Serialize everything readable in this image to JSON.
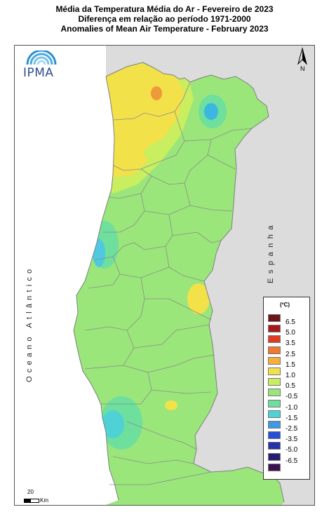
{
  "title": {
    "line1": "Média da Temperatura Média do Ar - Fevereiro de 2023",
    "line2": "Diferença em relação ao período 1971-2000",
    "line3": "Anomalies of Mean Air Temperature - February 2023"
  },
  "logo": {
    "text": "IPMA"
  },
  "north_arrow": {
    "letter": "N"
  },
  "labels": {
    "ocean": "Oceano Atlântico",
    "spain": "Espanha"
  },
  "legend": {
    "unit": "(ºC)",
    "entries": [
      {
        "label": "6.5",
        "color": "#6b1717"
      },
      {
        "label": "5.0",
        "color": "#a61a1a"
      },
      {
        "label": "3.5",
        "color": "#e03a20"
      },
      {
        "label": "2.5",
        "color": "#ef7a2b"
      },
      {
        "label": "1.5",
        "color": "#f6b03a"
      },
      {
        "label": "1.0",
        "color": "#f3e14a"
      },
      {
        "label": "0.5",
        "color": "#c9ee5f"
      },
      {
        "label": "-0.5",
        "color": "#9ae67a"
      },
      {
        "label": "-1.0",
        "color": "#6edf9c"
      },
      {
        "label": "-1.5",
        "color": "#4fd2d6"
      },
      {
        "label": "-2.5",
        "color": "#3c9ae6"
      },
      {
        "label": "-3.5",
        "color": "#2350d6"
      },
      {
        "label": "-5.0",
        "color": "#2532a8"
      },
      {
        "label": "-6.5",
        "color": "#271a73"
      },
      {
        "label": "",
        "color": "#3b1450"
      }
    ]
  },
  "scale_bar": {
    "value": "20",
    "unit": "Km"
  },
  "colors": {
    "land_base": "#9ae67a",
    "spain": "#dcdcdc",
    "sea": "#ffffff",
    "borders": "#7f7f7f"
  }
}
